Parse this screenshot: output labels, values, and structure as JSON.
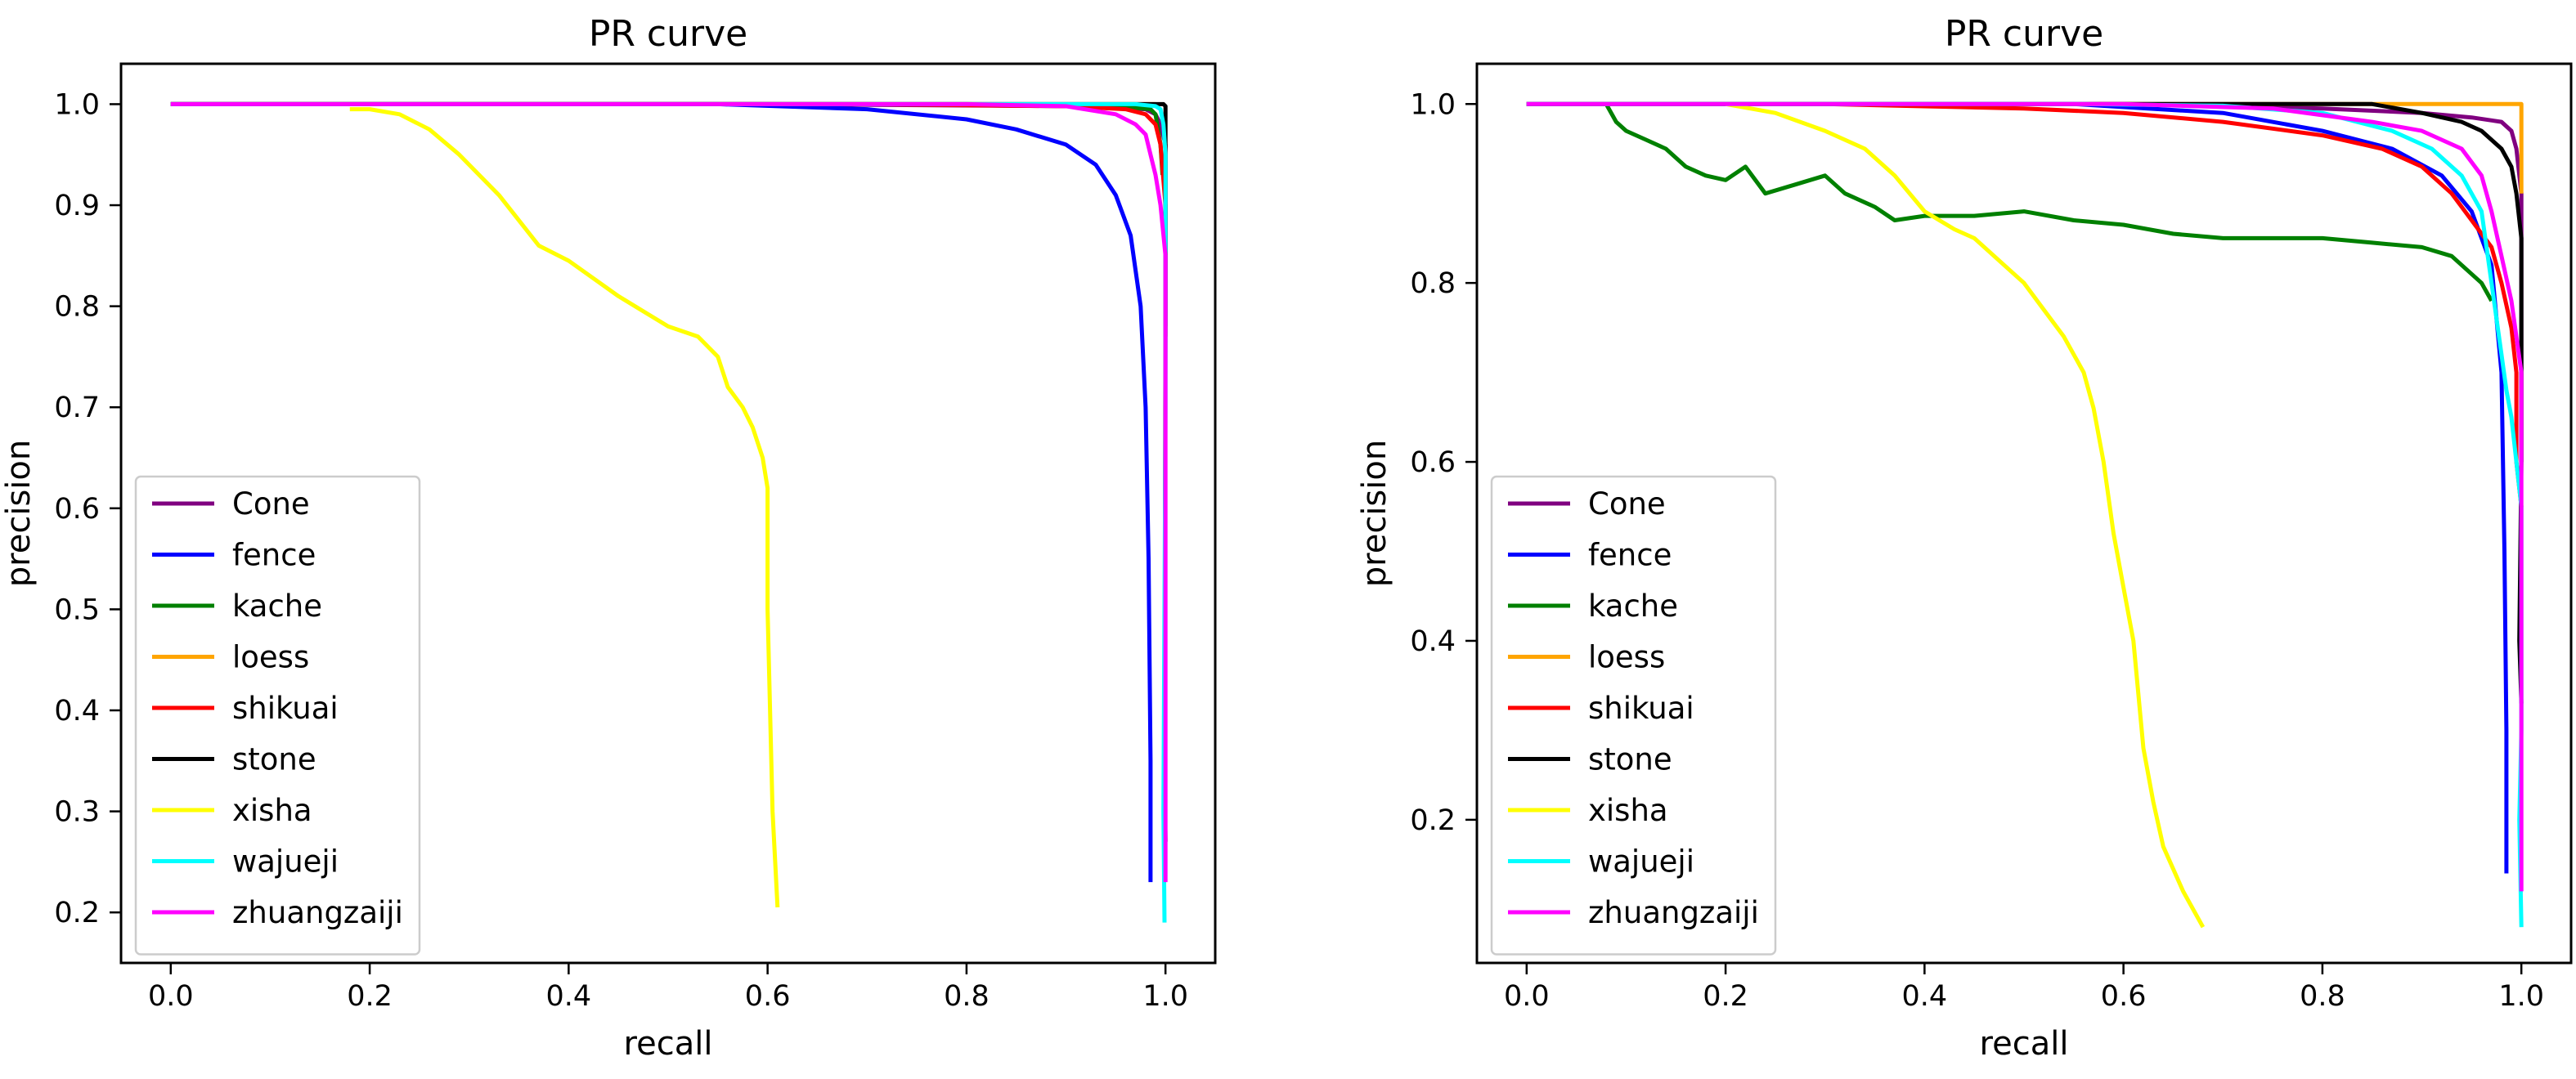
{
  "chart_data": [
    {
      "type": "line",
      "title": "PR curve",
      "xlabel": "recall",
      "ylabel": "precision",
      "xlim": [
        -0.05,
        1.05
      ],
      "ylim": [
        0.15,
        1.04
      ],
      "xticks": [
        "0.0",
        "0.2",
        "0.4",
        "0.6",
        "0.8",
        "1.0"
      ],
      "yticks": [
        "0.2",
        "0.3",
        "0.4",
        "0.5",
        "0.6",
        "0.7",
        "0.8",
        "0.9",
        "1.0"
      ],
      "grid": false,
      "legend_position": "lower-left",
      "series": [
        {
          "name": "Cone",
          "color": "#800080",
          "x": [
            0.0,
            0.6,
            0.9,
            0.98,
            0.99,
            0.995,
            1.0,
            1.0
          ],
          "y": [
            1.0,
            1.0,
            0.998,
            0.995,
            0.99,
            0.98,
            0.96,
            0.78
          ]
        },
        {
          "name": "fence",
          "color": "#0000ff",
          "x": [
            0.0,
            0.55,
            0.7,
            0.8,
            0.85,
            0.9,
            0.93,
            0.95,
            0.965,
            0.975,
            0.98,
            0.983,
            0.985,
            0.985
          ],
          "y": [
            1.0,
            1.0,
            0.995,
            0.985,
            0.975,
            0.96,
            0.94,
            0.91,
            0.87,
            0.8,
            0.7,
            0.55,
            0.35,
            0.23
          ]
        },
        {
          "name": "kache",
          "color": "#008000",
          "x": [
            0.0,
            0.8,
            0.95,
            0.985,
            0.99,
            0.995,
            0.997
          ],
          "y": [
            1.0,
            1.0,
            0.998,
            0.995,
            0.99,
            0.96,
            0.93
          ]
        },
        {
          "name": "loess",
          "color": "#ffa500",
          "x": [
            0.0,
            0.98,
            0.99,
            0.993
          ],
          "y": [
            1.0,
            1.0,
            1.0,
            0.998
          ]
        },
        {
          "name": "shikuai",
          "color": "#ff0000",
          "x": [
            0.0,
            0.7,
            0.9,
            0.96,
            0.98,
            0.99,
            0.995,
            1.0,
            1.0
          ],
          "y": [
            1.0,
            1.0,
            0.998,
            0.995,
            0.99,
            0.98,
            0.96,
            0.9,
            0.77
          ]
        },
        {
          "name": "stone",
          "color": "#000000",
          "x": [
            0.0,
            0.98,
            0.995,
            0.998,
            1.0,
            1.0,
            0.999,
            1.0
          ],
          "y": [
            1.0,
            1.0,
            1.0,
            1.0,
            0.998,
            0.8,
            0.35,
            0.27
          ]
        },
        {
          "name": "xisha",
          "color": "#ffff00",
          "x": [
            0.18,
            0.2,
            0.23,
            0.26,
            0.29,
            0.33,
            0.37,
            0.4,
            0.45,
            0.5,
            0.53,
            0.55,
            0.56,
            0.575,
            0.585,
            0.595,
            0.6,
            0.6,
            0.6,
            0.605,
            0.61
          ],
          "y": [
            0.995,
            0.995,
            0.99,
            0.975,
            0.95,
            0.91,
            0.86,
            0.845,
            0.81,
            0.78,
            0.77,
            0.75,
            0.72,
            0.7,
            0.68,
            0.65,
            0.62,
            0.6,
            0.5,
            0.3,
            0.205
          ]
        },
        {
          "name": "wajueji",
          "color": "#00ffff",
          "x": [
            0.0,
            0.79,
            0.97,
            0.99,
            0.995,
            0.998,
            1.0,
            1.0,
            0.998,
            0.999
          ],
          "y": [
            1.0,
            1.0,
            1.0,
            0.998,
            0.995,
            0.98,
            0.95,
            0.7,
            0.3,
            0.19
          ]
        },
        {
          "name": "zhuangzaiji",
          "color": "#ff00ff",
          "x": [
            0.0,
            0.8,
            0.9,
            0.95,
            0.97,
            0.98,
            0.985,
            0.99,
            0.995,
            1.0,
            1.0,
            1.0
          ],
          "y": [
            1.0,
            1.0,
            0.998,
            0.99,
            0.98,
            0.97,
            0.95,
            0.93,
            0.9,
            0.85,
            0.5,
            0.23
          ]
        }
      ]
    },
    {
      "type": "line",
      "title": "PR curve",
      "xlabel": "recall",
      "ylabel": "precision",
      "xlim": [
        -0.05,
        1.05
      ],
      "ylim": [
        0.04,
        1.045
      ],
      "xticks": [
        "0.0",
        "0.2",
        "0.4",
        "0.6",
        "0.8",
        "1.0"
      ],
      "yticks": [
        "0.2",
        "0.4",
        "0.6",
        "0.8",
        "1.0"
      ],
      "grid": false,
      "legend_position": "lower-left",
      "series": [
        {
          "name": "Cone",
          "color": "#800080",
          "x": [
            0.0,
            0.6,
            0.8,
            0.9,
            0.95,
            0.98,
            0.99,
            0.995,
            1.0,
            1.0
          ],
          "y": [
            1.0,
            1.0,
            0.995,
            0.99,
            0.985,
            0.98,
            0.97,
            0.95,
            0.9,
            0.6
          ]
        },
        {
          "name": "fence",
          "color": "#0000ff",
          "x": [
            0.0,
            0.55,
            0.7,
            0.8,
            0.87,
            0.92,
            0.95,
            0.97,
            0.98,
            0.983,
            0.985,
            0.985
          ],
          "y": [
            1.0,
            1.0,
            0.99,
            0.97,
            0.95,
            0.92,
            0.88,
            0.82,
            0.7,
            0.5,
            0.3,
            0.14
          ]
        },
        {
          "name": "kache",
          "color": "#008000",
          "x": [
            0.08,
            0.09,
            0.1,
            0.12,
            0.14,
            0.16,
            0.18,
            0.2,
            0.22,
            0.24,
            0.27,
            0.3,
            0.32,
            0.35,
            0.37,
            0.4,
            0.45,
            0.5,
            0.55,
            0.6,
            0.65,
            0.7,
            0.75,
            0.8,
            0.85,
            0.9,
            0.93,
            0.96,
            0.97
          ],
          "y": [
            1.0,
            0.98,
            0.97,
            0.96,
            0.95,
            0.93,
            0.92,
            0.915,
            0.93,
            0.9,
            0.91,
            0.92,
            0.9,
            0.885,
            0.87,
            0.875,
            0.875,
            0.88,
            0.87,
            0.865,
            0.855,
            0.85,
            0.85,
            0.85,
            0.845,
            0.84,
            0.83,
            0.8,
            0.78
          ]
        },
        {
          "name": "loess",
          "color": "#ffa500",
          "x": [
            0.0,
            0.86,
            1.0,
            1.0
          ],
          "y": [
            1.0,
            1.0,
            1.0,
            0.9
          ]
        },
        {
          "name": "shikuai",
          "color": "#ff0000",
          "x": [
            0.0,
            0.3,
            0.5,
            0.6,
            0.7,
            0.8,
            0.86,
            0.9,
            0.93,
            0.95,
            0.97,
            0.98,
            0.99,
            0.995,
            0.995,
            1.0
          ],
          "y": [
            1.0,
            1.0,
            0.995,
            0.99,
            0.98,
            0.965,
            0.95,
            0.93,
            0.9,
            0.87,
            0.84,
            0.8,
            0.75,
            0.7,
            0.6,
            0.55
          ]
        },
        {
          "name": "stone",
          "color": "#000000",
          "x": [
            0.0,
            0.85,
            0.9,
            0.94,
            0.96,
            0.98,
            0.99,
            0.995,
            1.0,
            1.0,
            0.998,
            1.0
          ],
          "y": [
            1.0,
            1.0,
            0.99,
            0.98,
            0.97,
            0.95,
            0.93,
            0.9,
            0.85,
            0.6,
            0.4,
            0.33
          ]
        },
        {
          "name": "xisha",
          "color": "#ffff00",
          "x": [
            0.2,
            0.25,
            0.3,
            0.34,
            0.37,
            0.4,
            0.43,
            0.45,
            0.48,
            0.5,
            0.52,
            0.54,
            0.56,
            0.57,
            0.58,
            0.585,
            0.59,
            0.6,
            0.61,
            0.615,
            0.62,
            0.63,
            0.64,
            0.66,
            0.68
          ],
          "y": [
            1.0,
            0.99,
            0.97,
            0.95,
            0.92,
            0.88,
            0.86,
            0.85,
            0.82,
            0.8,
            0.77,
            0.74,
            0.7,
            0.66,
            0.6,
            0.56,
            0.52,
            0.46,
            0.4,
            0.34,
            0.28,
            0.22,
            0.17,
            0.12,
            0.08
          ]
        },
        {
          "name": "wajueji",
          "color": "#00ffff",
          "x": [
            0.0,
            0.56,
            0.7,
            0.8,
            0.87,
            0.91,
            0.94,
            0.96,
            0.97,
            0.98,
            0.985,
            0.99,
            0.995,
            1.0,
            1.0,
            0.998,
            1.0
          ],
          "y": [
            1.0,
            1.0,
            0.998,
            0.99,
            0.97,
            0.95,
            0.92,
            0.88,
            0.8,
            0.72,
            0.68,
            0.65,
            0.6,
            0.55,
            0.3,
            0.2,
            0.08
          ]
        },
        {
          "name": "zhuangzaiji",
          "color": "#ff00ff",
          "x": [
            0.0,
            0.6,
            0.75,
            0.85,
            0.9,
            0.94,
            0.96,
            0.97,
            0.98,
            0.99,
            0.995,
            1.0,
            1.0,
            1.0
          ],
          "y": [
            1.0,
            1.0,
            0.995,
            0.98,
            0.97,
            0.95,
            0.92,
            0.88,
            0.83,
            0.78,
            0.74,
            0.7,
            0.4,
            0.12
          ]
        }
      ]
    }
  ]
}
